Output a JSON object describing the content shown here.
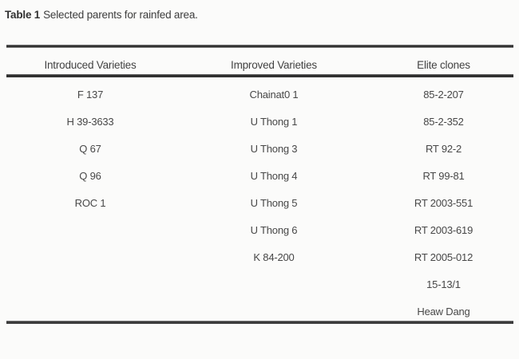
{
  "page": {
    "background": "#fbfbfa",
    "text_color": "#474747",
    "rule_color": "#323232"
  },
  "caption": {
    "label": "Table 1",
    "text": "Selected parents for rainfed area."
  },
  "table": {
    "headers": [
      "Introduced Varieties",
      "Improved Varieties",
      "Elite clones"
    ],
    "rows": [
      [
        "F 137",
        "Chainat0 1",
        "85-2-207"
      ],
      [
        "H 39-3633",
        "U Thong 1",
        "85-2-352"
      ],
      [
        "Q 67",
        "U Thong 3",
        "RT 92-2"
      ],
      [
        "Q 96",
        "U Thong 4",
        "RT 99-81"
      ],
      [
        "ROC 1",
        "U Thong 5",
        "RT 2003-551"
      ],
      [
        "",
        "U Thong 6",
        "RT 2003-619"
      ],
      [
        "",
        "K 84-200",
        "RT 2005-012"
      ],
      [
        "",
        "",
        "15-13/1"
      ],
      [
        "",
        "",
        "Heaw Dang"
      ]
    ]
  }
}
